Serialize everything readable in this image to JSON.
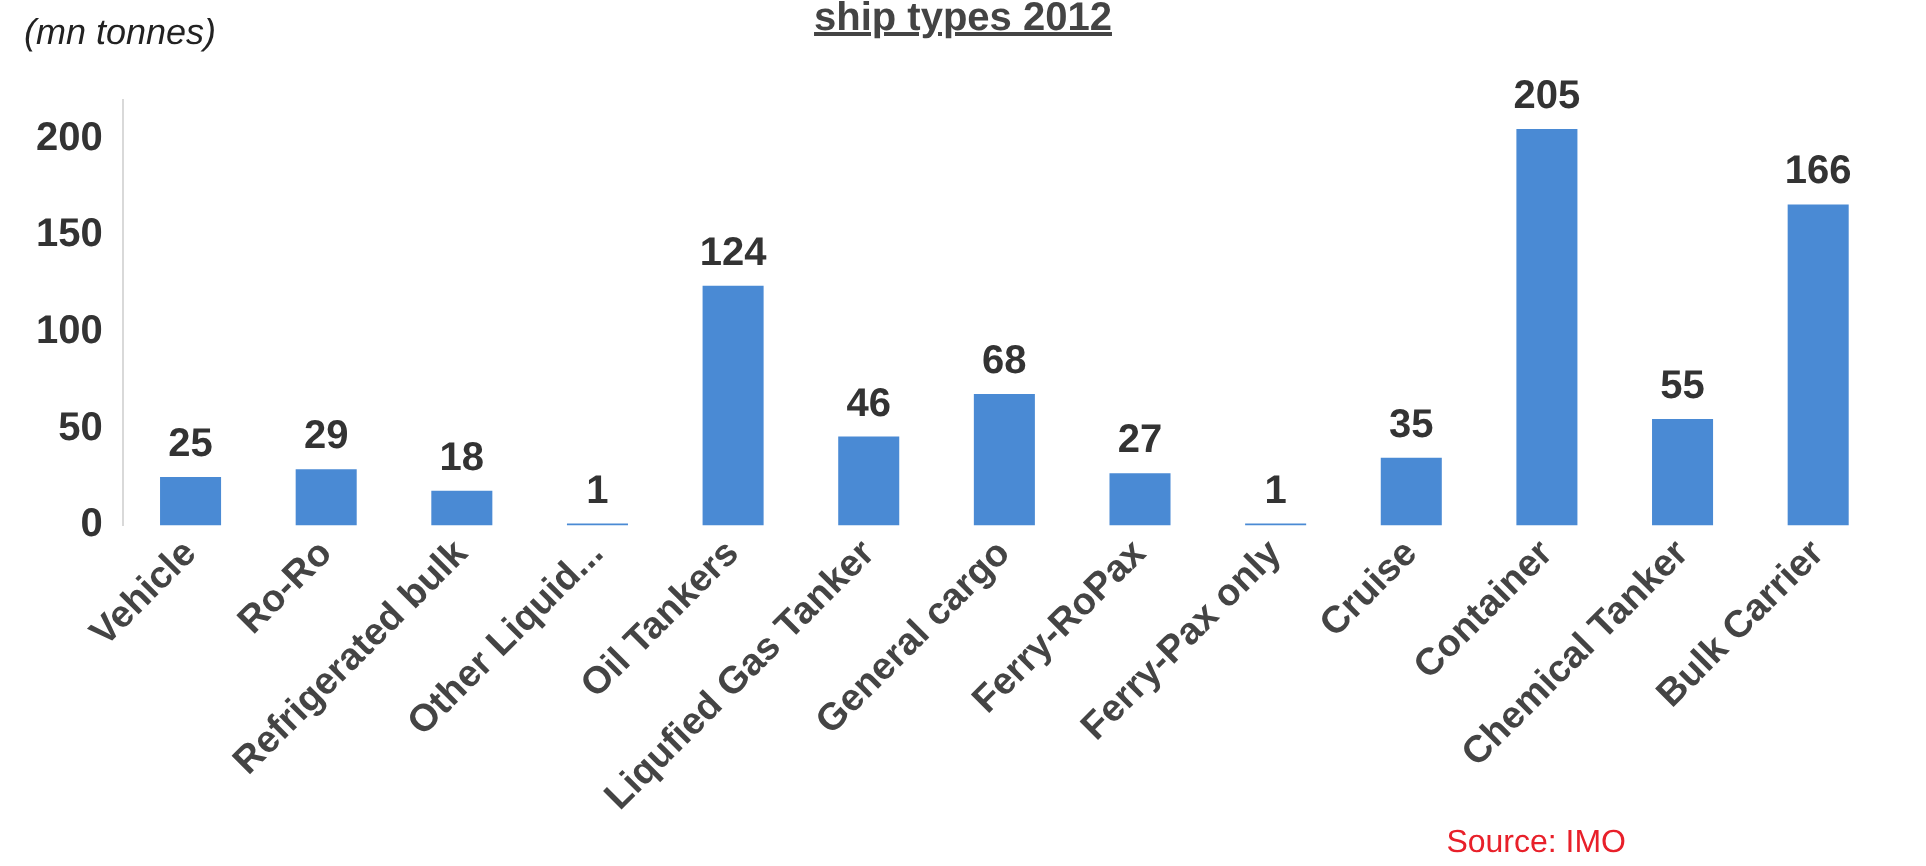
{
  "chart_data": {
    "type": "bar",
    "title": "ship types 2012",
    "ylabel": "(mn tonnes)",
    "categories": [
      "Vehicle",
      "Ro-Ro",
      "Refrigerated bulk",
      "Other Liquid...",
      "Oil Tankers",
      "Liqufied Gas Tanker",
      "General cargo",
      "Ferry-RoPax",
      "Ferry-Pax only",
      "Cruise",
      "Container",
      "Chemical Tanker",
      "Bulk Carrier"
    ],
    "values": [
      25,
      29,
      18,
      1,
      124,
      46,
      68,
      27,
      1,
      35,
      205,
      55,
      166
    ],
    "color": "#4a8ad4",
    "ylim": [
      0,
      220
    ],
    "yticks": [
      0,
      50,
      100,
      150,
      200
    ],
    "grid": false,
    "legend": false,
    "data_labels": true,
    "annotations": [
      "Source: IMO"
    ]
  }
}
